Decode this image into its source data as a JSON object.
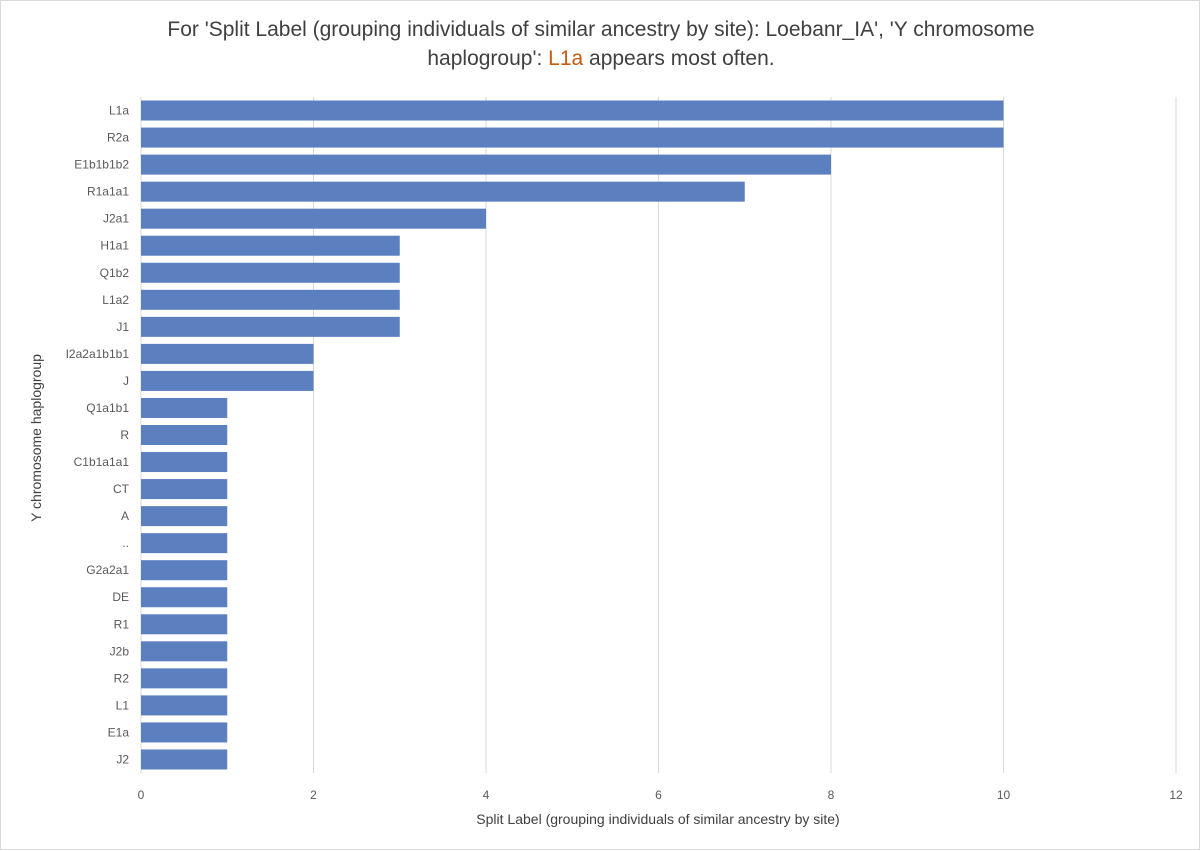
{
  "chart_data": {
    "type": "bar",
    "orientation": "horizontal",
    "title_line1": "For 'Split Label  (grouping individuals of similar ancestry by site): Loebanr_IA', 'Y chromosome",
    "title_line2_pre": "haplogroup': ",
    "title_highlight": "L1a",
    "title_line2_post": " appears most often.",
    "xlabel": "Split Label  (grouping individuals of similar ancestry by site)",
    "ylabel": "Y chromosome haplogroup",
    "xlim": [
      0,
      12
    ],
    "x_ticks": [
      0,
      2,
      4,
      6,
      8,
      10,
      12
    ],
    "grid": true,
    "categories": [
      "L1a",
      "R2a",
      "E1b1b1b2",
      "R1a1a1",
      "J2a1",
      "H1a1",
      "Q1b2",
      "L1a2",
      "J1",
      "I2a2a1b1b1",
      "J",
      "Q1a1b1",
      "R",
      "C1b1a1a1",
      "CT",
      "A",
      "..",
      "G2a2a1",
      "DE",
      "R1",
      "J2b",
      "R2",
      "L1",
      "E1a",
      "J2"
    ],
    "values": [
      10,
      10,
      8,
      7,
      4,
      3,
      3,
      3,
      3,
      2,
      2,
      1,
      1,
      1,
      1,
      1,
      1,
      1,
      1,
      1,
      1,
      1,
      1,
      1,
      1
    ],
    "colors": {
      "bar": "#5b7fbf",
      "highlight": "#c55a11",
      "grid": "#d9d9d9"
    }
  }
}
